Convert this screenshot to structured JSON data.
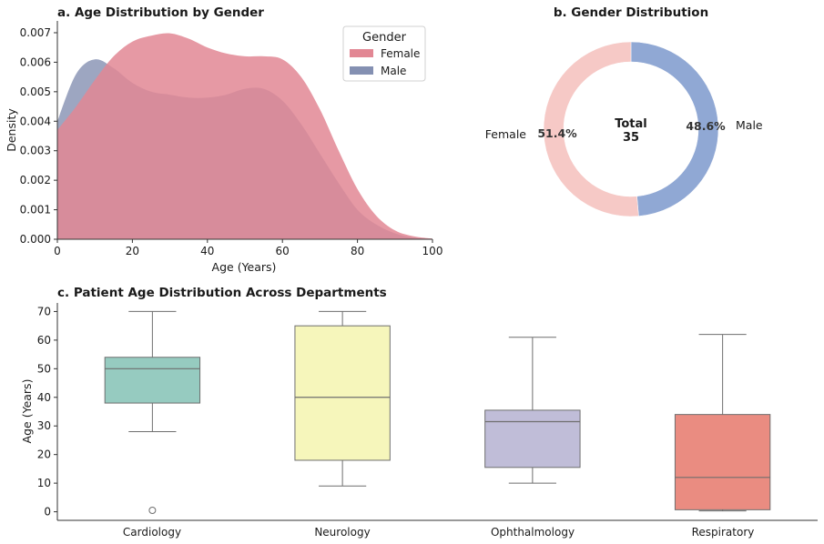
{
  "chart_data": [
    {
      "type": "area",
      "title": "a. Age Distribution by Gender",
      "xlabel": "Age (Years)",
      "ylabel": "Density",
      "xlim": [
        0,
        100
      ],
      "ylim": [
        0,
        0.0074
      ],
      "xticks": [
        "0",
        "20",
        "40",
        "60",
        "80",
        "100"
      ],
      "yticks": [
        "0.000",
        "0.001",
        "0.002",
        "0.003",
        "0.004",
        "0.005",
        "0.006",
        "0.007"
      ],
      "legend": {
        "title": "Gender",
        "placement": "top-right"
      },
      "series": [
        {
          "name": "Female",
          "color": "#e28794",
          "x": [
            0,
            5,
            10,
            15,
            20,
            25,
            30,
            35,
            40,
            45,
            50,
            55,
            60,
            65,
            70,
            75,
            80,
            85,
            90,
            95,
            100
          ],
          "y": [
            0.0037,
            0.0045,
            0.0054,
            0.0062,
            0.0067,
            0.0069,
            0.00698,
            0.0068,
            0.0065,
            0.0063,
            0.0062,
            0.0062,
            0.0061,
            0.0055,
            0.0044,
            0.003,
            0.0017,
            0.0008,
            0.0003,
            0.0001,
            2e-05
          ]
        },
        {
          "name": "Male",
          "color": "#8490b2",
          "x": [
            0,
            5,
            10,
            15,
            20,
            25,
            30,
            35,
            40,
            45,
            50,
            55,
            60,
            65,
            70,
            75,
            80,
            85,
            90,
            95,
            100
          ],
          "y": [
            0.004,
            0.0056,
            0.0061,
            0.0058,
            0.0053,
            0.005,
            0.0049,
            0.0048,
            0.0048,
            0.0049,
            0.0051,
            0.0051,
            0.0047,
            0.0039,
            0.0029,
            0.0019,
            0.001,
            0.0005,
            0.0002,
            5e-05,
            1e-05
          ]
        }
      ]
    },
    {
      "type": "pie",
      "title": "b. Gender Distribution",
      "center_label": "Total",
      "total": 35,
      "slices": [
        {
          "label": "Female",
          "percent": 51.4,
          "pct_label": "51.4%",
          "color": "#f6c9c6"
        },
        {
          "label": "Male",
          "percent": 48.6,
          "pct_label": "48.6%",
          "color": "#90a8d4"
        }
      ]
    },
    {
      "type": "box",
      "title": "c. Patient Age Distribution Across Departments",
      "xlabel": "",
      "ylabel": "Age (Years)",
      "ylim": [
        -3,
        73
      ],
      "yticks": [
        "0",
        "10",
        "20",
        "30",
        "40",
        "50",
        "60",
        "70"
      ],
      "categories": [
        "Cardiology",
        "Neurology",
        "Ophthalmology",
        "Respiratory"
      ],
      "boxes": [
        {
          "category": "Cardiology",
          "whisker_low": 28,
          "q1": 38,
          "median": 50,
          "q3": 54,
          "whisker_high": 70,
          "outliers": [
            0.5
          ],
          "color": "#96cbc0"
        },
        {
          "category": "Neurology",
          "whisker_low": 9,
          "q1": 18,
          "median": 40,
          "q3": 65,
          "whisker_high": 70,
          "outliers": [],
          "color": "#f6f6bb"
        },
        {
          "category": "Ophthalmology",
          "whisker_low": 10,
          "q1": 15.5,
          "median": 31.5,
          "q3": 35.5,
          "whisker_high": 61,
          "outliers": [],
          "color": "#c0bdd8"
        },
        {
          "category": "Respiratory",
          "whisker_low": 0.3,
          "q1": 0.7,
          "median": 12,
          "q3": 34,
          "whisker_high": 62,
          "outliers": [],
          "color": "#ea8c81"
        }
      ]
    }
  ]
}
